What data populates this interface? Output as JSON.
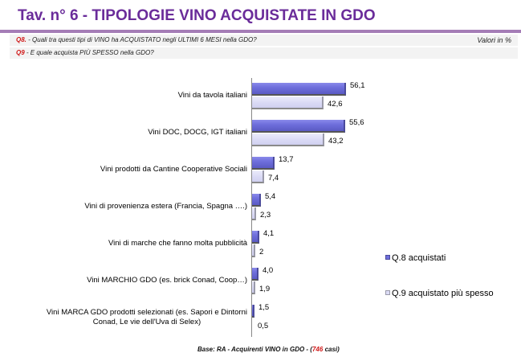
{
  "header": {
    "title": "Tav. n° 6 - TIPOLOGIE VINO ACQUISTATE IN GDO"
  },
  "questions": [
    {
      "id": "Q8.",
      "text": " - Quali tra questi tipi di VINO ha ACQUISTATO negli ULTIMI 6 MESI nella GDO?"
    },
    {
      "id": "Q9",
      "text": " - E quale acquista PIÙ SPESSO nella GDO?"
    }
  ],
  "unit_label": "Valori in %",
  "legend": {
    "q8": "Q.8 acquistati",
    "q9": "Q.9 acquistato più spesso"
  },
  "footer": {
    "prefix": "Base:  RA - Acquirenti  VINO in GDO - (",
    "n": "746",
    "suffix": " casi)"
  },
  "chart_data": {
    "type": "bar",
    "orientation": "horizontal",
    "title": "Tav. n° 6 - TIPOLOGIE VINO ACQUISTATE IN GDO",
    "xlabel": "",
    "ylabel": "",
    "unit": "Valori in %",
    "grid": false,
    "legend_position": "right",
    "categories": [
      "Vini da tavola italiani",
      "Vini DOC, DOCG, IGT italiani",
      "Vini prodotti da Cantine Cooperative Sociali",
      "Vini di provenienza estera (Francia, Spagna ….)",
      "Vini di marche che fanno molta pubblicità",
      "Vini MARCHIO GDO (es.  brick Conad, Coop…)",
      "Vini  MARCA GDO prodotti selezionati  (es.  Sapori e Dintorni Conad, Le vie dell'Uva di Selex)"
    ],
    "category_lines": [
      [
        "Vini da tavola italiani"
      ],
      [
        "Vini DOC, DOCG, IGT italiani"
      ],
      [
        "Vini prodotti da Cantine Cooperative Sociali"
      ],
      [
        "Vini di provenienza estera (Francia, Spagna ….)"
      ],
      [
        "Vini di marche che fanno molta pubblicità"
      ],
      [
        "Vini MARCHIO GDO (es.  brick Conad, Coop…)"
      ],
      [
        "Vini  MARCA GDO prodotti selezionati  (es.  Sapori e Dintorni",
        "Conad, Le vie dell'Uva di Selex)"
      ]
    ],
    "series": [
      {
        "name": "Q.8 acquistati",
        "color": "#6f6fdc",
        "values": [
          56.1,
          55.6,
          13.7,
          5.4,
          4.1,
          4.0,
          1.5
        ],
        "labels": [
          "56,1",
          "55,6",
          "13,7",
          "5,4",
          "4,1",
          "4,0",
          "1,5"
        ]
      },
      {
        "name": "Q.9 acquistato più spesso",
        "color": "#dcdcf6",
        "values": [
          42.6,
          43.2,
          7.4,
          2.3,
          2,
          1.9,
          0.5
        ],
        "labels": [
          "42,6",
          "43,2",
          "7,4",
          "2,3",
          "2",
          "1,9",
          "0,5"
        ]
      }
    ]
  }
}
